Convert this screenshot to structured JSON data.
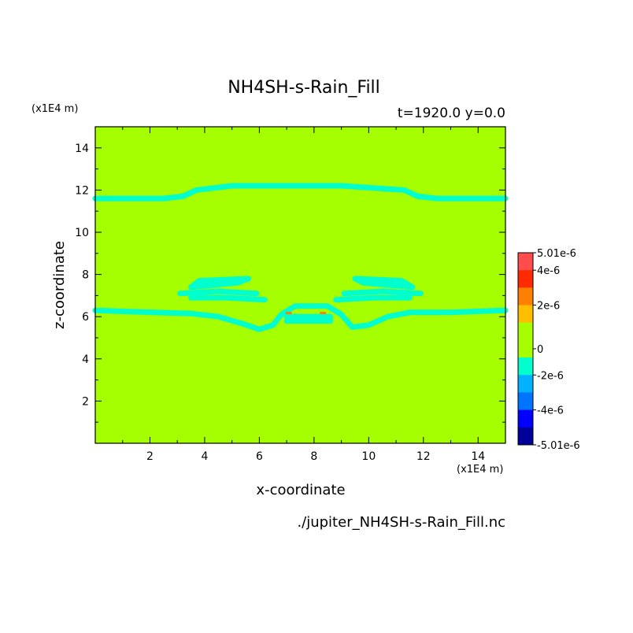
{
  "chart_data": {
    "type": "heatmap",
    "title": "NH4SH-s-Rain_Fill",
    "subtitle": "t=1920.0 y=0.0",
    "xlabel": "x-coordinate",
    "ylabel": "z-coordinate",
    "x_unit": "(x1E4 m)",
    "y_unit": "(x1E4 m)",
    "source_file": "./jupiter_NH4SH-s-Rain_Fill.nc",
    "xlim": [
      0,
      15
    ],
    "ylim": [
      0,
      15
    ],
    "x_ticks": [
      2,
      4,
      6,
      8,
      10,
      12,
      14
    ],
    "y_ticks": [
      2,
      4,
      6,
      8,
      10,
      12,
      14
    ],
    "background_level": 0,
    "background_color": "#a6ff00",
    "colorbar": {
      "max_label": "5.01e-6",
      "min_label": "-5.01e-6",
      "levels": [
        {
          "value": "5.01e-6",
          "color": "#ff4d4d"
        },
        {
          "value": "4e-6",
          "color": "#ff2a00"
        },
        {
          "value": "3e-6",
          "color": "#ff7f00"
        },
        {
          "value": "2e-6",
          "color": "#ffbf00"
        },
        {
          "value": "1e-6",
          "color": "#a6ff00"
        },
        {
          "value": "0",
          "color": "#a6ff00"
        },
        {
          "value": "-1e-6",
          "color": "#00ffcc"
        },
        {
          "value": "-2e-6",
          "color": "#00b2ff"
        },
        {
          "value": "-3e-6",
          "color": "#0073ff"
        },
        {
          "value": "-4e-6",
          "color": "#0000ff"
        },
        {
          "value": "-5.01e-6",
          "color": "#000099"
        }
      ],
      "tick_labels": [
        "5.01e-6",
        "4e-6",
        "2e-6",
        "0",
        "-2e-6",
        "-4e-6",
        "-5.01e-6"
      ]
    },
    "features": [
      {
        "name": "upper-band",
        "value": "-1e-6",
        "points": [
          [
            0,
            11.6
          ],
          [
            2.5,
            11.6
          ],
          [
            3.2,
            11.7
          ],
          [
            3.7,
            12.0
          ],
          [
            5,
            12.2
          ],
          [
            9,
            12.2
          ],
          [
            11.3,
            12.0
          ],
          [
            11.8,
            11.7
          ],
          [
            12.5,
            11.6
          ],
          [
            15,
            11.6
          ]
        ]
      },
      {
        "name": "lower-band",
        "value": "-1e-6",
        "points": [
          [
            0,
            6.3
          ],
          [
            1,
            6.25
          ],
          [
            3.5,
            6.15
          ],
          [
            4.5,
            6.0
          ],
          [
            5.3,
            5.7
          ],
          [
            6,
            5.4
          ],
          [
            6.5,
            5.6
          ],
          [
            6.8,
            6.1
          ],
          [
            7.3,
            6.5
          ],
          [
            8.5,
            6.5
          ],
          [
            9,
            6.1
          ],
          [
            9.4,
            5.5
          ],
          [
            10,
            5.6
          ],
          [
            10.7,
            6.0
          ],
          [
            11.5,
            6.2
          ],
          [
            13,
            6.2
          ],
          [
            15,
            6.3
          ]
        ]
      },
      {
        "name": "left-blob-top",
        "value": "-1e-6",
        "points": [
          [
            3.5,
            7.4
          ],
          [
            3.8,
            7.7
          ],
          [
            5.6,
            7.8
          ],
          [
            5.2,
            7.6
          ],
          [
            3.5,
            7.4
          ]
        ]
      },
      {
        "name": "left-blob-mid",
        "value": "-1e-6",
        "points": [
          [
            3.1,
            7.1
          ],
          [
            4.5,
            7.2
          ],
          [
            5.9,
            7.1
          ]
        ]
      },
      {
        "name": "left-blob-bottom",
        "value": "-1e-6",
        "points": [
          [
            3.5,
            6.9
          ],
          [
            4.8,
            6.9
          ],
          [
            6.2,
            6.8
          ]
        ]
      },
      {
        "name": "right-blob-top",
        "value": "-1e-6",
        "points": [
          [
            9.5,
            7.8
          ],
          [
            11.2,
            7.7
          ],
          [
            11.6,
            7.4
          ],
          [
            9.8,
            7.6
          ],
          [
            9.5,
            7.8
          ]
        ]
      },
      {
        "name": "right-blob-mid",
        "value": "-1e-6",
        "points": [
          [
            9.1,
            7.1
          ],
          [
            10.5,
            7.2
          ],
          [
            11.9,
            7.1
          ]
        ]
      },
      {
        "name": "right-blob-bottom",
        "value": "-1e-6",
        "points": [
          [
            8.8,
            6.8
          ],
          [
            10.2,
            6.9
          ],
          [
            11.5,
            6.9
          ]
        ]
      },
      {
        "name": "center-bar-upper",
        "value": "-1e-6",
        "points": [
          [
            7.0,
            6.0
          ],
          [
            8.6,
            6.0
          ]
        ]
      },
      {
        "name": "center-bar-lower",
        "value": "-1e-6",
        "points": [
          [
            7.0,
            5.8
          ],
          [
            8.6,
            5.8
          ]
        ]
      },
      {
        "name": "center-positive",
        "value": "3e-6",
        "points": [
          [
            7.0,
            6.17
          ],
          [
            7.15,
            6.17
          ]
        ]
      },
      {
        "name": "center-positive-right",
        "value": "3e-6",
        "points": [
          [
            8.25,
            6.17
          ],
          [
            8.4,
            6.17
          ]
        ]
      }
    ]
  }
}
